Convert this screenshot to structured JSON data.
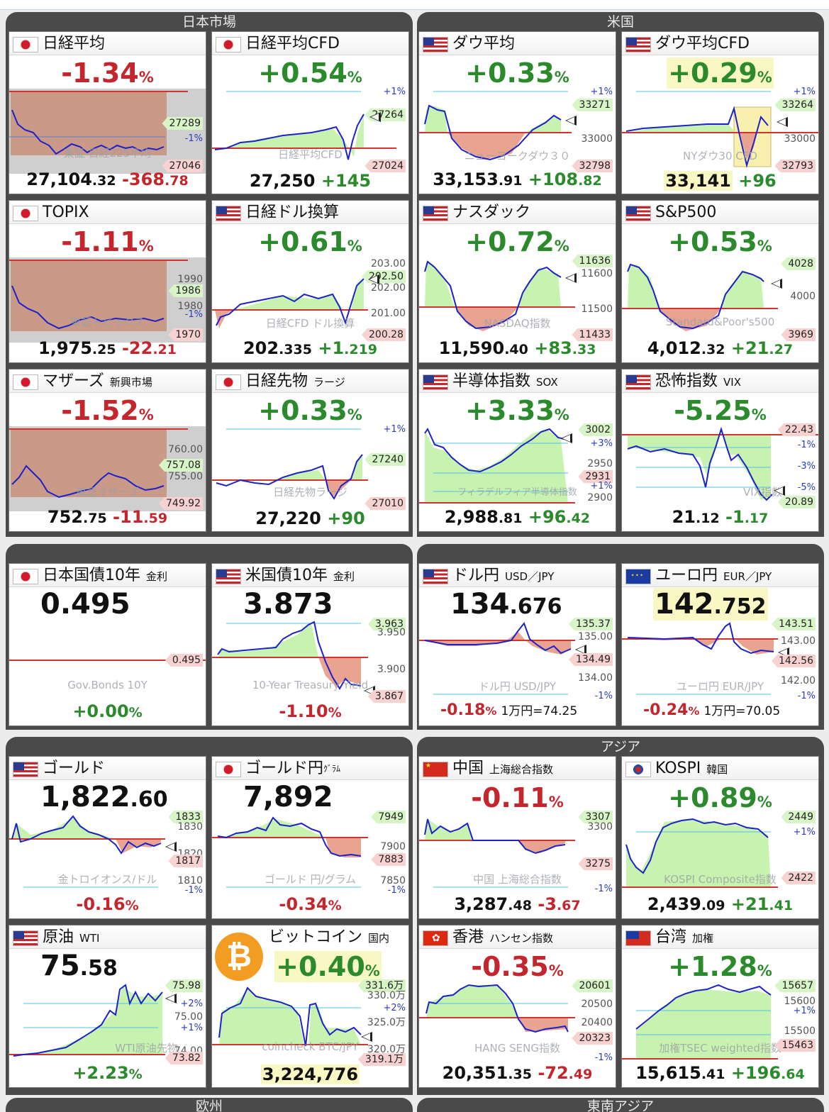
{
  "sections": {
    "japan": "日本市場",
    "us": "米国",
    "asia": "アジア",
    "europe": "欧州",
    "sea": "東南アジア"
  },
  "cards": {
    "nikkei": {
      "name": "日経平均",
      "pct": "-1.34",
      "price_main": "27,104",
      "price_dec": ".32",
      "chg_main": "-368",
      "chg_dec": ".78",
      "wm": "東証 日経225平均",
      "hi": "27289",
      "mid": "-1%",
      "lo": "27046"
    },
    "nikkei_cfd": {
      "name": "日経平均CFD",
      "pct": "+0.54",
      "price": "27,250",
      "chg": "+145",
      "wm": "日経平均CFD",
      "top": "+1%",
      "hi": "27264",
      "lo": "27024"
    },
    "dow": {
      "name": "ダウ平均",
      "pct": "+0.33",
      "price_main": "33,153",
      "price_dec": ".91",
      "chg_main": "+108",
      "chg_dec": ".82",
      "wm": "ニューヨークダウ３０",
      "top": "+1%",
      "hi": "33271",
      "mid": "33000",
      "lo": "32798"
    },
    "dow_cfd": {
      "name": "ダウ平均CFD",
      "pct": "+0.29",
      "price": "33,141",
      "chg": "+96",
      "wm": "NYダウ30 CFD",
      "top": "+1%",
      "hi": "33264",
      "mid": "33000",
      "lo": "32793"
    },
    "topix": {
      "name": "TOPIX",
      "pct": "-1.11",
      "price_main": "1,975",
      "price_dec": ".25",
      "chg_main": "-22",
      "chg_dec": ".21",
      "wm": "東証トピックス",
      "t1": "1990",
      "hi": "1986",
      "t2": "1980",
      "t3": "-1%",
      "lo": "1970"
    },
    "nikkei_usd": {
      "name": "日経ドル換算",
      "pct": "+0.61",
      "price_main": "202",
      "price_dec": ".335",
      "chg_main": "+1",
      "chg_dec": ".219",
      "wm": "日経CFD ドル換算",
      "t1": "203.00",
      "hi": "202.50",
      "t2": "202.00",
      "t3": "201.00",
      "lo": "200.28"
    },
    "nasdaq": {
      "name": "ナスダック",
      "pct": "+0.72",
      "price_main": "11,590",
      "price_dec": ".40",
      "chg_main": "+83",
      "chg_dec": ".33",
      "wm": "NASDAQ指数",
      "hi": "11636",
      "t1": "11600",
      "t2": "11500",
      "lo": "11433"
    },
    "sp500": {
      "name": "S&P500",
      "pct": "+0.53",
      "price_main": "4,012",
      "price_dec": ".32",
      "chg_main": "+21",
      "chg_dec": ".27",
      "wm": "Standard&Poor's500",
      "hi": "4028",
      "t1": "4000",
      "lo": "3969"
    },
    "mothers": {
      "name": "マザーズ",
      "sub": "新興市場",
      "pct": "-1.52",
      "price_main": "752",
      "price_dec": ".75",
      "chg_main": "-11",
      "chg_dec": ".59",
      "wm": "東証マザーズ",
      "t1": "760.00",
      "hi": "757.08",
      "t2": "755.00",
      "lo": "749.92"
    },
    "nikkei_fut": {
      "name": "日経先物",
      "sub": "ラージ",
      "pct": "+0.33",
      "price": "27,220",
      "chg": "+90",
      "wm": "日経先物ラージ",
      "top": "+1%",
      "hi": "27240",
      "lo": "27010"
    },
    "sox": {
      "name": "半導体指数",
      "sub": "SOX",
      "pct": "+3.33",
      "price_main": "2,988",
      "price_dec": ".81",
      "chg_main": "+96",
      "chg_dec": ".42",
      "wm": "フィラデルフィア半導体指数",
      "hi": "3002",
      "t1": "+3%",
      "t2": "2950",
      "lo": "2931",
      "t3": "+1%",
      "t4": "2900"
    },
    "vix": {
      "name": "恐怖指数",
      "sub": "VIX",
      "pct": "-5.25",
      "price_main": "21",
      "price_dec": ".12",
      "chg_main": "-1",
      "chg_dec": ".17",
      "wm": "VIX指数",
      "hi": "22.43",
      "t1": "-1%",
      "t2": "-3%",
      "t3": "-5%",
      "lo": "20.89"
    },
    "jgb10": {
      "name": "日本国債10年",
      "sub": "金利",
      "val": "0.495",
      "wm": "Gov.Bonds 10Y",
      "lo": "0.495",
      "pct": "+0.00"
    },
    "ust10": {
      "name": "米国債10年",
      "sub": "金利",
      "val": "3.873",
      "wm": "10-Year Treasury Yield",
      "hi": "3.963",
      "t1": "3.950",
      "t2": "3.900",
      "lo": "3.867",
      "pct": "-1.10"
    },
    "usdjpy": {
      "name": "ドル円",
      "sub": "USD／JPY",
      "val_main": "134",
      "val_dec": ".676",
      "wm": "ドル円 USD/JPY",
      "hi": "135.37",
      "t1": "135.00",
      "lo": "134.49",
      "t2": "134.00",
      "t3": "-1%",
      "pct": "-0.18",
      "fx": "1万円=74.25"
    },
    "eurjpy": {
      "name": "ユーロ円",
      "sub": "EUR／JPY",
      "val_main": "142",
      "val_dec": ".752",
      "wm": "ユーロ円 EUR/JPY",
      "hi": "143.51",
      "t1": "143.00",
      "lo": "142.56",
      "t2": "142.00",
      "t3": "-1%",
      "pct": "-0.24",
      "fx": "1万円=70.05"
    },
    "gold": {
      "name": "ゴールド",
      "val_main": "1,822",
      "val_dec": ".60",
      "wm": "金トロイオンス/ドル",
      "hi": "1833",
      "t1": "1830",
      "t2": "1820",
      "lo": "1817",
      "t3": "1810",
      "t4": "-1%",
      "pct": "-0.16"
    },
    "gold_jpy": {
      "name": "ゴールド円",
      "sub": "ｸﾞﾗﾑ",
      "val": "7,892",
      "wm": "ゴールド 円/グラム",
      "hi": "7949",
      "t1": "7900",
      "lo": "7883",
      "t2": "7850",
      "t3": "-1%",
      "pct": "-0.34"
    },
    "china": {
      "name": "中国",
      "sub": "上海総合指数",
      "pct": "-0.11",
      "price_main": "3,287",
      "price_dec": ".48",
      "chg_main": "-3",
      "chg_dec": ".67",
      "wm": "中国 上海総合指数",
      "hi": "3307",
      "t1": "3300",
      "lo": "3275",
      "t2": "-1%"
    },
    "kospi": {
      "name": "KOSPI",
      "sub": "韓国",
      "pct": "+0.89",
      "price_main": "2,439",
      "price_dec": ".09",
      "chg_main": "+21",
      "chg_dec": ".41",
      "wm": "KOSPI Composite指数",
      "hi": "2449",
      "t1": "+1%",
      "lo": "2422"
    },
    "wti": {
      "name": "原油",
      "sub": "WTI",
      "val_main": "75",
      "val_dec": ".58",
      "wm": "WTI原油先物",
      "hi": "75.98",
      "t1": "+2%",
      "t2": "75.00",
      "t3": "+1%",
      "t4": "74.00",
      "lo": "73.82",
      "pct": "+2.23"
    },
    "btc": {
      "name": "ビットコイン",
      "sub": "国内",
      "pct": "+0.40",
      "price": "3,224,776",
      "wm": "coincheck BTC/JPY",
      "hi": "331.6万",
      "t1": "330.0万",
      "t2": "+2%",
      "t3": "325.0万",
      "t4": "320.0万",
      "lo": "319.1万"
    },
    "hk": {
      "name": "香港",
      "sub": "ハンセン指数",
      "pct": "-0.35",
      "price_main": "20,351",
      "price_dec": ".35",
      "chg_main": "-72",
      "chg_dec": ".49",
      "wm": "HANG SENG指数",
      "hi": "20601",
      "t1": "20500",
      "t2": "20400",
      "lo": "20323",
      "t3": "-1%"
    },
    "taiwan": {
      "name": "台湾",
      "sub": "加権",
      "pct": "+1.28",
      "price_main": "15,615",
      "price_dec": ".41",
      "chg_main": "+196",
      "chg_dec": ".64",
      "wm": "加権TSEC weighted指数",
      "hi": "15657",
      "t1": "15600",
      "t2": "+1%",
      "t3": "15500",
      "lo": "15463"
    }
  },
  "units": {
    "pct": "%"
  },
  "colors": {
    "up": "#2b8a2b",
    "down": "#c4262e",
    "line": "#1c22c8",
    "fill_up": "#c8f2b0",
    "fill_down": "#e8a491",
    "baseline": "#d0342c",
    "grid": "#4fc3e8"
  },
  "icons": {
    "btc": "₿"
  }
}
